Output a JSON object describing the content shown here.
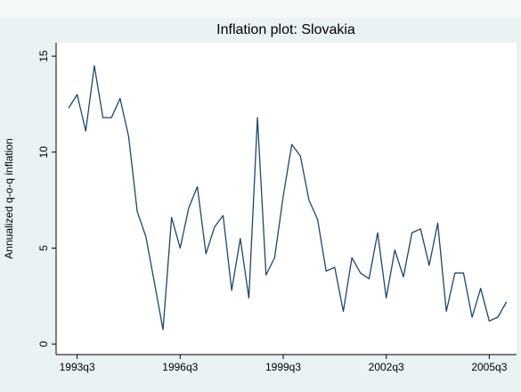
{
  "chart_data": {
    "type": "line",
    "title": "Inflation plot: Slovakia",
    "y_label": "Annualized q-o-q inflation",
    "categories": [
      "1993q2",
      "1993q3",
      "1993q4",
      "1994q1",
      "1994q2",
      "1994q3",
      "1994q4",
      "1995q1",
      "1995q2",
      "1995q3",
      "1995q4",
      "1996q1",
      "1996q2",
      "1996q3",
      "1996q4",
      "1997q1",
      "1997q2",
      "1997q3",
      "1997q4",
      "1998q1",
      "1998q2",
      "1998q3",
      "1998q4",
      "1999q1",
      "1999q2",
      "1999q3",
      "1999q4",
      "2000q1",
      "2000q2",
      "2000q3",
      "2000q4",
      "2001q1",
      "2001q2",
      "2001q3",
      "2001q4",
      "2002q1",
      "2002q2",
      "2002q3",
      "2002q4",
      "2003q1",
      "2003q2",
      "2003q3",
      "2003q4",
      "2004q1",
      "2004q2",
      "2004q3",
      "2004q4",
      "2005q1",
      "2005q2",
      "2005q3",
      "2005q4",
      "2006q1"
    ],
    "series": [
      {
        "name": "Annualized q-o-q inflation",
        "color": "#1a476f",
        "values": [
          12.3,
          13.0,
          11.1,
          14.5,
          11.8,
          11.8,
          12.8,
          10.8,
          6.9,
          5.6,
          3.2,
          0.75,
          6.6,
          5.0,
          7.1,
          8.2,
          4.7,
          6.1,
          6.7,
          2.8,
          5.5,
          2.4,
          11.8,
          3.6,
          4.5,
          7.7,
          10.4,
          9.8,
          7.5,
          6.5,
          3.8,
          4.0,
          1.7,
          4.5,
          3.7,
          3.4,
          5.8,
          2.4,
          4.9,
          3.5,
          5.8,
          6.0,
          4.1,
          6.3,
          1.7,
          3.7,
          3.7,
          1.4,
          2.9,
          1.2,
          1.4,
          2.2
        ]
      }
    ],
    "xticks": [
      "1993q3",
      "1996q3",
      "1999q3",
      "2002q3",
      "2005q3"
    ],
    "ylim": [
      -0.55,
      15.7
    ],
    "yticks": [
      0,
      5,
      10,
      15
    ],
    "grid": false
  }
}
